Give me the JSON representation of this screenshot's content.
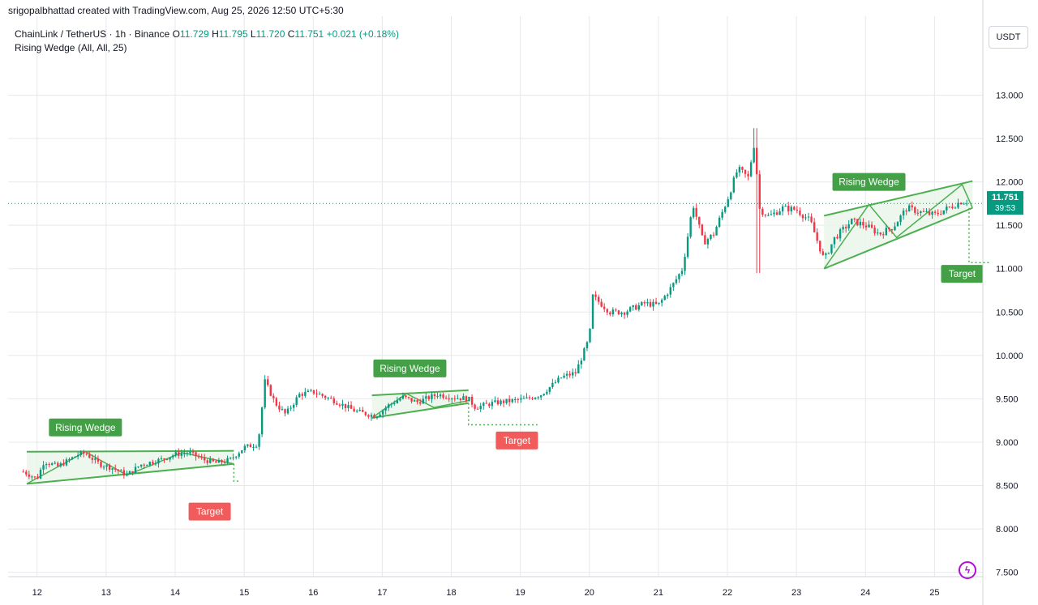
{
  "credit": "srigopalbhattad created with TradingView.com, Aug 25, 2026 12:50 UTC+5:30",
  "header": {
    "symbol": "ChainLink / TetherUS · 1h · Binance",
    "o_label": "O",
    "o_value": "11.729",
    "h_label": "H",
    "h_value": "11.795",
    "l_label": "L",
    "l_value": "11.720",
    "c_label": "C",
    "c_value": "11.751",
    "change": "+0.021 (+0.18%)"
  },
  "indicator": "Rising Wedge (All, All, 25)",
  "currency_button": "USDT",
  "price_label": {
    "price": "11.751",
    "countdown": "39:53"
  },
  "logo_icon": "tradingview-logo-icon",
  "colors": {
    "up": "#089981",
    "down": "#f23645",
    "pattern_line": "#4caf50",
    "pattern_fill": "#e8f5e9",
    "pattern_label_bg": "#43a047",
    "target_label_bg": "#f15b5b",
    "grid": "#e6e8ec"
  },
  "chart_data": {
    "type": "candlestick",
    "title": "",
    "ylim": [
      7.45,
      13.35
    ],
    "y_ticks": [
      "7.500",
      "8.000",
      "8.500",
      "9.000",
      "9.500",
      "10.000",
      "10.500",
      "11.000",
      "11.500",
      "12.000",
      "12.500",
      "13.000"
    ],
    "x_ticks": [
      "12",
      "13",
      "14",
      "15",
      "16",
      "17",
      "18",
      "19",
      "20",
      "21",
      "22",
      "23",
      "24",
      "25"
    ],
    "grid": true,
    "last_price": 11.751,
    "price_path": [
      [
        11.8,
        8.66
      ],
      [
        12.0,
        8.58
      ],
      [
        12.1,
        8.78
      ],
      [
        12.3,
        8.72
      ],
      [
        12.6,
        8.86
      ],
      [
        12.7,
        8.87
      ],
      [
        12.9,
        8.75
      ],
      [
        13.1,
        8.7
      ],
      [
        13.3,
        8.62
      ],
      [
        13.5,
        8.74
      ],
      [
        13.8,
        8.8
      ],
      [
        14.0,
        8.86
      ],
      [
        14.2,
        8.88
      ],
      [
        14.4,
        8.8
      ],
      [
        14.6,
        8.76
      ],
      [
        14.8,
        8.8
      ],
      [
        15.0,
        8.94
      ],
      [
        15.2,
        8.98
      ],
      [
        15.3,
        9.7
      ],
      [
        15.45,
        9.45
      ],
      [
        15.6,
        9.32
      ],
      [
        15.8,
        9.55
      ],
      [
        16.0,
        9.58
      ],
      [
        16.3,
        9.48
      ],
      [
        16.6,
        9.36
      ],
      [
        16.9,
        9.3
      ],
      [
        17.1,
        9.43
      ],
      [
        17.3,
        9.52
      ],
      [
        17.5,
        9.46
      ],
      [
        17.8,
        9.55
      ],
      [
        18.0,
        9.52
      ],
      [
        18.25,
        9.5
      ],
      [
        18.35,
        9.4
      ],
      [
        18.6,
        9.45
      ],
      [
        18.8,
        9.47
      ],
      [
        19.1,
        9.5
      ],
      [
        19.3,
        9.55
      ],
      [
        19.6,
        9.75
      ],
      [
        19.8,
        9.8
      ],
      [
        20.0,
        10.2
      ],
      [
        20.05,
        10.68
      ],
      [
        20.3,
        10.5
      ],
      [
        20.5,
        10.5
      ],
      [
        20.8,
        10.6
      ],
      [
        21.0,
        10.58
      ],
      [
        21.2,
        10.8
      ],
      [
        21.35,
        11.0
      ],
      [
        21.5,
        11.75
      ],
      [
        21.65,
        11.3
      ],
      [
        21.8,
        11.4
      ],
      [
        22.0,
        11.8
      ],
      [
        22.15,
        12.15
      ],
      [
        22.3,
        12.05
      ],
      [
        22.4,
        12.5
      ],
      [
        22.45,
        11.7
      ],
      [
        22.6,
        11.6
      ],
      [
        22.8,
        11.7
      ],
      [
        23.0,
        11.68
      ],
      [
        23.2,
        11.55
      ],
      [
        23.4,
        11.1
      ],
      [
        23.55,
        11.35
      ],
      [
        23.8,
        11.55
      ],
      [
        24.0,
        11.5
      ],
      [
        24.2,
        11.4
      ],
      [
        24.4,
        11.48
      ],
      [
        24.6,
        11.7
      ],
      [
        24.8,
        11.65
      ],
      [
        25.0,
        11.62
      ],
      [
        25.2,
        11.7
      ],
      [
        25.4,
        11.78
      ],
      [
        25.5,
        11.75
      ]
    ],
    "patterns": [
      {
        "label": "Rising Wedge",
        "target_label": "Target",
        "target_price": 8.55
      },
      {
        "label": "Rising Wedge",
        "target_label": "Target",
        "target_price": 9.2
      },
      {
        "label": "Rising Wedge",
        "target_label": "Target",
        "target_price": 11.07
      }
    ]
  }
}
